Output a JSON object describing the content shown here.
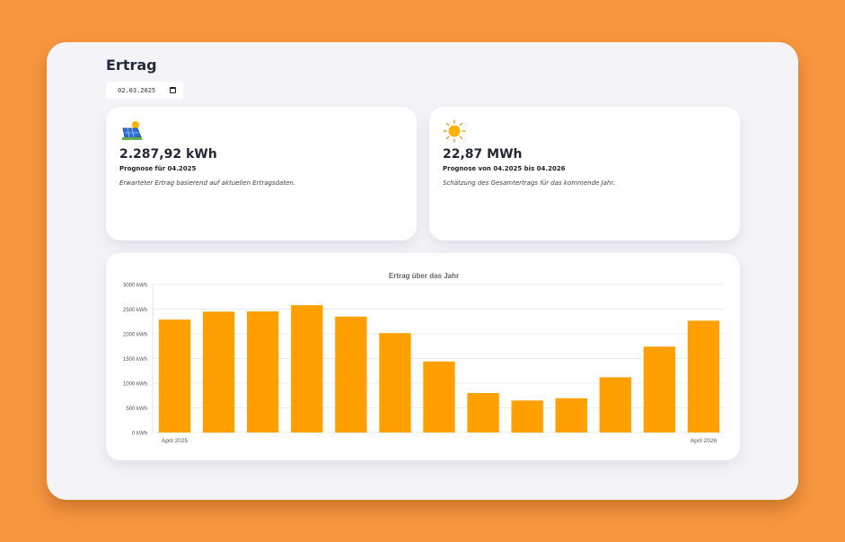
{
  "page": {
    "title": "Ertrag"
  },
  "date_picker": {
    "value": "02.03.2025"
  },
  "cards": [
    {
      "icon": "solar-panel-icon",
      "value": "2.287,92 kWh",
      "label": "Prognose für 04.2025",
      "description": "Erwarteter Ertrag basierend auf aktuellen Ertragsdaten."
    },
    {
      "icon": "sun-icon",
      "value": "22,87 MWh",
      "label": "Prognose von 04.2025 bis 04.2026",
      "description": "Schätzung des Gesamtertrags für das kommende Jahr."
    }
  ],
  "colors": {
    "bar": "#ff9f00",
    "background": "#f7963f",
    "panel": "#f4f4f8"
  },
  "chart_data": {
    "type": "bar",
    "title": "Ertrag über das Jahr",
    "xlabel": "",
    "ylabel": "",
    "ylim": [
      0,
      3000
    ],
    "yticks": [
      0,
      500,
      1000,
      1500,
      2000,
      2500,
      3000
    ],
    "ytick_labels": [
      "0 kWh",
      "500 kWh",
      "1000 kWh",
      "1500 kWh",
      "2000 kWh",
      "2500 kWh",
      "3000 kWh"
    ],
    "x_label_first": "April 2025",
    "x_label_last": "April 2026",
    "values": [
      2288,
      2450,
      2455,
      2580,
      2350,
      2015,
      1440,
      800,
      650,
      695,
      1120,
      1740,
      2265
    ],
    "grid": true,
    "legend": "none"
  }
}
